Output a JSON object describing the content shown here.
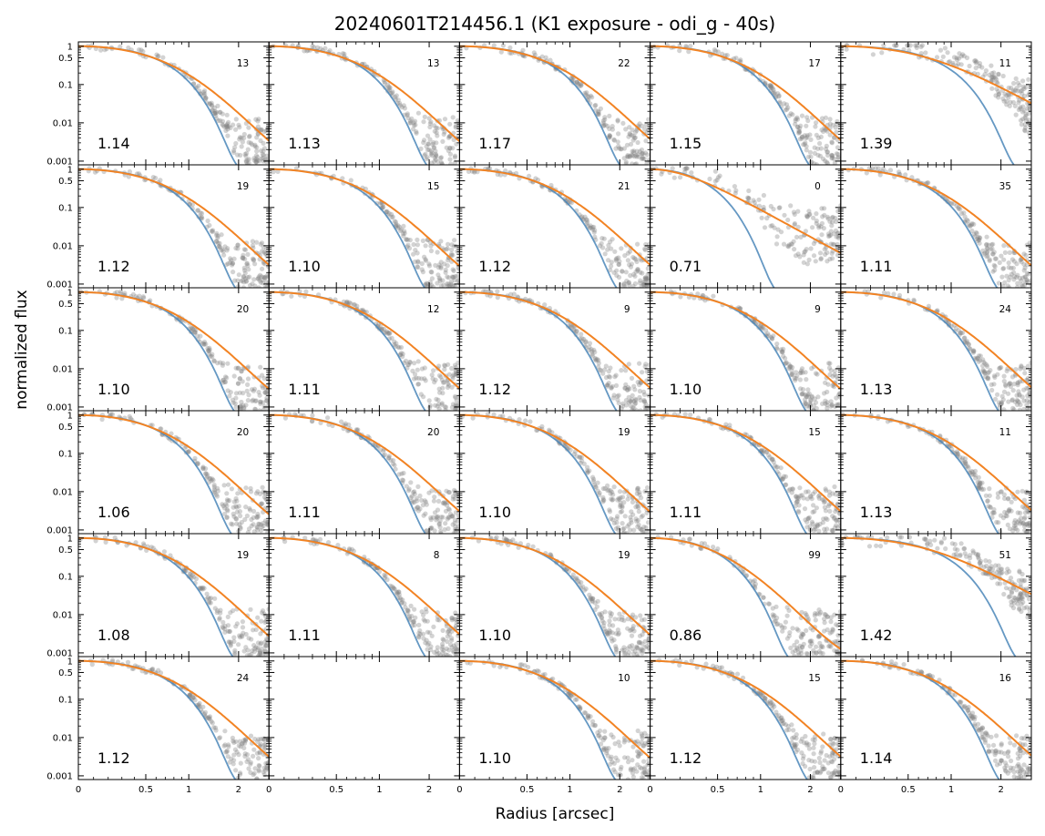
{
  "chart_data": {
    "type": "scatter",
    "title": "20240601T214456.1 (K1 exposure - odi_g - 40s)",
    "xlabel": "Radius [arcsec]",
    "ylabel": "normalized flux",
    "x_scale": "asinh-like (linear near 0, log at large radius)",
    "y_scale": "log",
    "xlim": [
      0,
      3
    ],
    "ylim": [
      0.0008,
      1.3
    ],
    "xticks": [
      0,
      0.5,
      1,
      2
    ],
    "xtick_labels": [
      "0",
      "0.5",
      "1",
      "2"
    ],
    "yticks": [
      1,
      0.5,
      0.1,
      0.01,
      0.001
    ],
    "ytick_labels": [
      "1",
      "0.5",
      "0.1",
      "0.01",
      "0.001"
    ],
    "grid": false,
    "grid_rows": 6,
    "grid_cols": 5,
    "series_styles": {
      "points": "#808080",
      "gaussian_fit": "#4a86b8",
      "moffat_fit": "#f28323"
    },
    "panels": [
      {
        "row": 0,
        "col": 0,
        "fwhm": "1.14",
        "n": "13"
      },
      {
        "row": 0,
        "col": 1,
        "fwhm": "1.13",
        "n": "13"
      },
      {
        "row": 0,
        "col": 2,
        "fwhm": "1.17",
        "n": "22"
      },
      {
        "row": 0,
        "col": 3,
        "fwhm": "1.15",
        "n": "17"
      },
      {
        "row": 0,
        "col": 4,
        "fwhm": "1.39",
        "n": "11"
      },
      {
        "row": 1,
        "col": 0,
        "fwhm": "1.12",
        "n": "19"
      },
      {
        "row": 1,
        "col": 1,
        "fwhm": "1.10",
        "n": "15"
      },
      {
        "row": 1,
        "col": 2,
        "fwhm": "1.12",
        "n": "21"
      },
      {
        "row": 1,
        "col": 3,
        "fwhm": "0.71",
        "n": "0"
      },
      {
        "row": 1,
        "col": 4,
        "fwhm": "1.11",
        "n": "35"
      },
      {
        "row": 2,
        "col": 0,
        "fwhm": "1.10",
        "n": "20"
      },
      {
        "row": 2,
        "col": 1,
        "fwhm": "1.11",
        "n": "12"
      },
      {
        "row": 2,
        "col": 2,
        "fwhm": "1.12",
        "n": "9"
      },
      {
        "row": 2,
        "col": 3,
        "fwhm": "1.10",
        "n": "9"
      },
      {
        "row": 2,
        "col": 4,
        "fwhm": "1.13",
        "n": "24"
      },
      {
        "row": 3,
        "col": 0,
        "fwhm": "1.06",
        "n": "20"
      },
      {
        "row": 3,
        "col": 1,
        "fwhm": "1.11",
        "n": "20"
      },
      {
        "row": 3,
        "col": 2,
        "fwhm": "1.10",
        "n": "19"
      },
      {
        "row": 3,
        "col": 3,
        "fwhm": "1.11",
        "n": "15"
      },
      {
        "row": 3,
        "col": 4,
        "fwhm": "1.13",
        "n": "11"
      },
      {
        "row": 4,
        "col": 0,
        "fwhm": "1.08",
        "n": "19"
      },
      {
        "row": 4,
        "col": 1,
        "fwhm": "1.11",
        "n": "8"
      },
      {
        "row": 4,
        "col": 2,
        "fwhm": "1.10",
        "n": "19"
      },
      {
        "row": 4,
        "col": 3,
        "fwhm": "0.86",
        "n": "99"
      },
      {
        "row": 4,
        "col": 4,
        "fwhm": "1.42",
        "n": "51"
      },
      {
        "row": 5,
        "col": 0,
        "fwhm": "1.12",
        "n": "24"
      },
      {
        "row": 5,
        "col": 1,
        "fwhm": "",
        "n": "",
        "empty": true
      },
      {
        "row": 5,
        "col": 2,
        "fwhm": "1.10",
        "n": "10"
      },
      {
        "row": 5,
        "col": 3,
        "fwhm": "1.12",
        "n": "15"
      },
      {
        "row": 5,
        "col": 4,
        "fwhm": "1.14",
        "n": "16"
      }
    ]
  }
}
